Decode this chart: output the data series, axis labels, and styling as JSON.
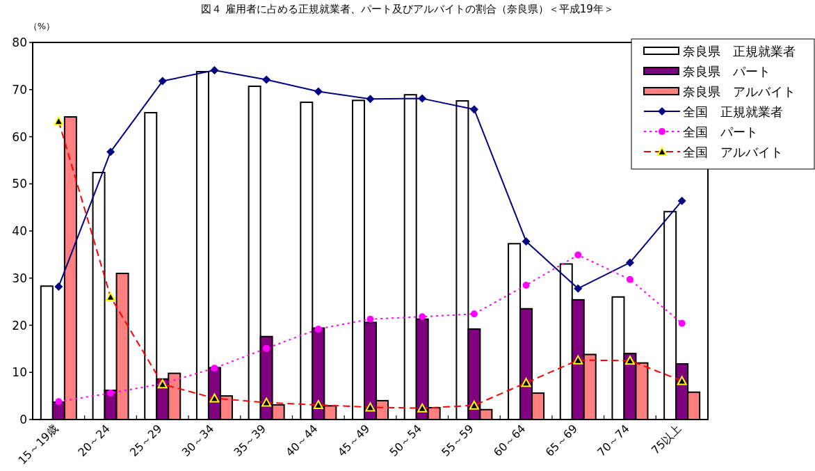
{
  "chart_data": {
    "type": "bar",
    "title": "図４ 雇用者に占める正規就業者、パート及びアルバイトの割合（奈良県）＜平成19年＞",
    "ylabel": "（%）",
    "categories": [
      "15～19歳",
      "20～24",
      "25～29",
      "30～34",
      "35～39",
      "40～44",
      "45～49",
      "50～54",
      "55～59",
      "60～64",
      "65～69",
      "70～74",
      "75以上"
    ],
    "series": [
      {
        "name": "奈良県　正規就業者",
        "color": "#ffffff",
        "values": [
          28.3,
          52.4,
          65.1,
          73.8,
          70.7,
          67.3,
          67.7,
          68.9,
          67.6,
          37.3,
          33.0,
          26.0,
          44.1
        ]
      },
      {
        "name": "奈良県　パート",
        "color": "#800080",
        "values": [
          3.7,
          6.2,
          8.6,
          11.0,
          17.6,
          19.4,
          20.6,
          21.3,
          19.2,
          23.5,
          25.4,
          14.0,
          11.8
        ]
      },
      {
        "name": "奈良県　アルバイト",
        "color": "#ff8080",
        "values": [
          64.2,
          31.0,
          9.8,
          5.0,
          3.1,
          2.9,
          4.0,
          2.5,
          2.1,
          5.6,
          13.8,
          12.0,
          5.8
        ]
      },
      {
        "name": "全国　正規就業者",
        "type": "line",
        "color": "#000080",
        "marker": "diamond",
        "line_style": "solid",
        "values": [
          28.2,
          56.8,
          71.8,
          74.1,
          72.1,
          69.6,
          68.0,
          68.1,
          65.8,
          37.8,
          27.8,
          33.3,
          46.4
        ]
      },
      {
        "name": "全国　パート",
        "type": "line",
        "color": "#ff00ff",
        "marker": "circle",
        "line_style": "dotted",
        "values": [
          3.8,
          5.6,
          7.6,
          10.9,
          15.1,
          19.2,
          21.3,
          21.8,
          22.4,
          28.5,
          34.9,
          29.7,
          20.4
        ]
      },
      {
        "name": "全国　アルバイト",
        "type": "line",
        "color": "#ff0000",
        "marker": "triangle",
        "line_style": "dashed",
        "values": [
          63.3,
          26.0,
          7.5,
          4.5,
          3.6,
          3.1,
          2.6,
          2.4,
          3.0,
          7.8,
          12.6,
          12.5,
          8.2
        ]
      }
    ],
    "ylim": [
      0,
      80
    ],
    "yticks": [
      0,
      10,
      20,
      30,
      40,
      50,
      60,
      70,
      80
    ],
    "grid": false,
    "legend": "top right"
  }
}
